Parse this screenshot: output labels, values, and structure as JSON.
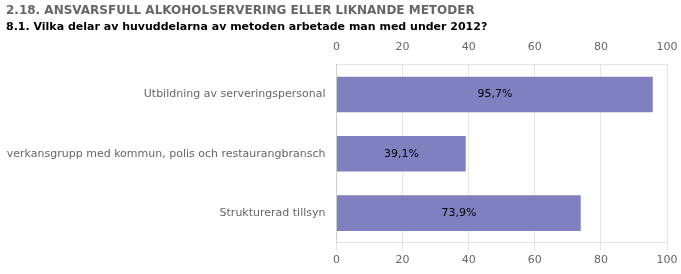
{
  "chart_data": {
    "type": "bar",
    "orientation": "horizontal",
    "title": "2.18. ANSVARSFULL ALKOHOLSERVERING ELLER LIKNANDE METODER",
    "subtitle": "8.1. Vilka delar av huvuddelarna av metoden arbetade man med under 2012?",
    "categories": [
      "Utbildning av serveringspersonal",
      "Samverkansgrupp med kommun, polis och restaurangbransch",
      "Strukturerad tillsyn"
    ],
    "values": [
      95.7,
      39.1,
      73.9
    ],
    "value_labels": [
      "95,7%",
      "39,1%",
      "73,9%"
    ],
    "data_labels": true,
    "color": "#8080c0",
    "xlim": [
      0,
      100
    ],
    "xticks": [
      0,
      20,
      40,
      60,
      80,
      100
    ],
    "grid": true
  }
}
